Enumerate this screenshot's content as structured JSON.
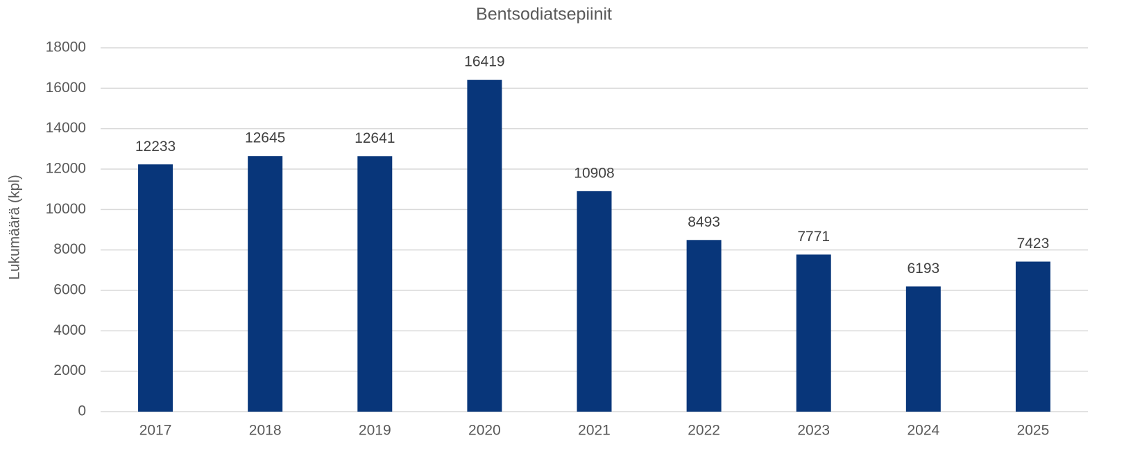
{
  "chart_data": {
    "type": "bar",
    "title": "Bentsodiatsepiinit",
    "ylabel": "Lukumäärä (kpl)",
    "categories": [
      "2017",
      "2018",
      "2019",
      "2020",
      "2021",
      "2022",
      "2023",
      "2024",
      "2025"
    ],
    "values": [
      12233,
      12645,
      12641,
      16419,
      10908,
      8493,
      7771,
      6193,
      7423
    ],
    "color": "#08367a",
    "ylim": [
      0,
      18000
    ],
    "yticks": [
      0,
      2000,
      4000,
      6000,
      8000,
      10000,
      12000,
      14000,
      16000,
      18000
    ],
    "grid": true
  }
}
